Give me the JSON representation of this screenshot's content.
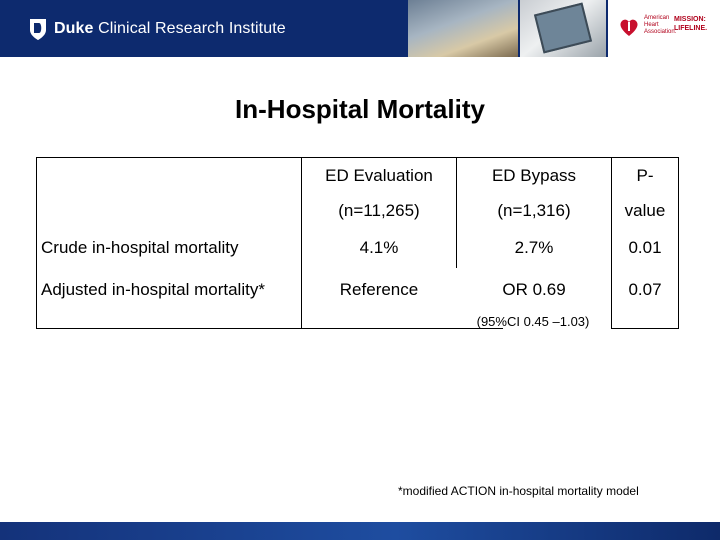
{
  "header": {
    "logo_bold": "Duke",
    "logo_text": "Clinical Research Institute",
    "partner_small": "American Heart Association.",
    "partner_mission": "MISSION: LIFELINE."
  },
  "title": "In-Hospital Mortality",
  "table": {
    "columns": [
      {
        "line1": "ED Evaluation",
        "line2": "(n=11,265)"
      },
      {
        "line1": "ED Bypass",
        "line2": "(n=1,316)"
      },
      {
        "line1": "P-",
        "line2": "value"
      }
    ],
    "rows": [
      {
        "label": "Crude in-hospital mortality",
        "values": [
          "4.1%",
          "2.7%",
          "0.01"
        ]
      },
      {
        "label": "Adjusted in-hospital mortality*",
        "values": [
          "Reference",
          "OR 0.69",
          "0.07"
        ],
        "note": "(95%CI 0.45 –1.03)"
      }
    ]
  },
  "footnote": "*modified ACTION in-hospital mortality model",
  "colors": {
    "header_bg": "#0d2a6e",
    "footer_bg": "#1e4da0",
    "aha_red": "#b0001b"
  }
}
